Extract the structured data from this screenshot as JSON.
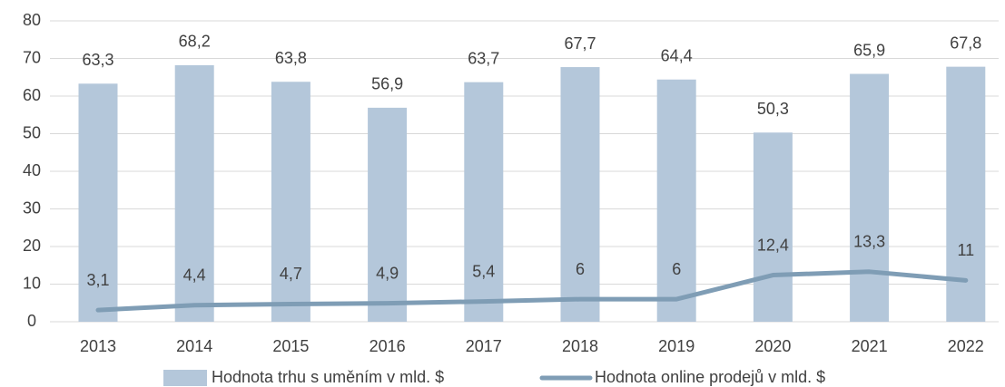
{
  "chart_data": {
    "type": "bar_line",
    "categories": [
      "2013",
      "2014",
      "2015",
      "2016",
      "2017",
      "2018",
      "2019",
      "2020",
      "2021",
      "2022"
    ],
    "series": [
      {
        "name": "Hodnota trhu s uměním v mld. $",
        "type": "bar",
        "color": "#b4c7da",
        "values": [
          63.3,
          68.2,
          63.8,
          56.9,
          63.7,
          67.7,
          64.4,
          50.3,
          65.9,
          67.8
        ],
        "value_labels": [
          "63,3",
          "68,2",
          "63,8",
          "56,9",
          "63,7",
          "67,7",
          "64,4",
          "50,3",
          "65,9",
          "67,8"
        ]
      },
      {
        "name": "Hodnota online prodejů v mld. $",
        "type": "line",
        "color": "#7f9db5",
        "values": [
          3.1,
          4.4,
          4.7,
          4.9,
          5.4,
          6,
          6,
          12.4,
          13.3,
          11
        ],
        "value_labels": [
          "3,1",
          "4,4",
          "4,7",
          "4,9",
          "5,4",
          "6",
          "6",
          "12,4",
          "13,3",
          "11"
        ]
      }
    ],
    "ylim": [
      0,
      80
    ],
    "yticks": [
      0,
      10,
      20,
      30,
      40,
      50,
      60,
      70,
      80
    ],
    "grid": true,
    "legend": "bottom"
  }
}
